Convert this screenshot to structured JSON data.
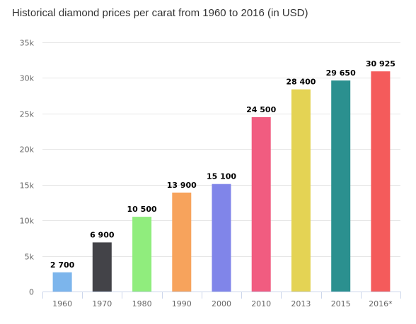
{
  "chart_data": {
    "type": "bar",
    "title": "Historical diamond prices per carat from 1960 to 2016 (in USD)",
    "xlabel": "",
    "ylabel": "",
    "categories": [
      "1960",
      "1970",
      "1980",
      "1990",
      "2000",
      "2010",
      "2013",
      "2015",
      "2016*"
    ],
    "values": [
      2700,
      6900,
      10500,
      13900,
      15100,
      24500,
      28400,
      29650,
      30925
    ],
    "data_labels": [
      "2 700",
      "6 900",
      "10 500",
      "13 900",
      "15 100",
      "24 500",
      "28 400",
      "29 650",
      "30 925"
    ],
    "colors": [
      "#7cb5ec",
      "#434348",
      "#90ed7d",
      "#f7a35c",
      "#8085e9",
      "#f15c80",
      "#e4d354",
      "#2b908f",
      "#f45b5b"
    ],
    "ylim": [
      0,
      35000
    ],
    "yticks": [
      0,
      5000,
      10000,
      15000,
      20000,
      25000,
      30000,
      35000
    ],
    "ytick_labels": [
      "0",
      "5k",
      "10k",
      "15k",
      "20k",
      "25k",
      "30k",
      "35k"
    ],
    "grid": true,
    "legend": "none"
  }
}
